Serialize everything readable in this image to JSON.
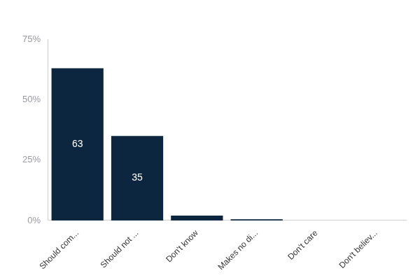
{
  "chart_data": {
    "type": "bar",
    "categories": [
      "Should com...",
      "Should not ...",
      "Don't know",
      "Makes no di...",
      "Don't care",
      "Don't believ..."
    ],
    "values": [
      63,
      35,
      2,
      0.5,
      0,
      0
    ],
    "value_labels": [
      "63",
      "35",
      null,
      null,
      null,
      null
    ],
    "data_labels": true,
    "color": "#0c2640",
    "ylim": [
      0,
      75
    ],
    "yticks": [
      {
        "value": 0,
        "label": "0%"
      },
      {
        "value": 25,
        "label": "25%"
      },
      {
        "value": 50,
        "label": "50%"
      },
      {
        "value": 75,
        "label": "75%"
      }
    ],
    "grid": false
  }
}
